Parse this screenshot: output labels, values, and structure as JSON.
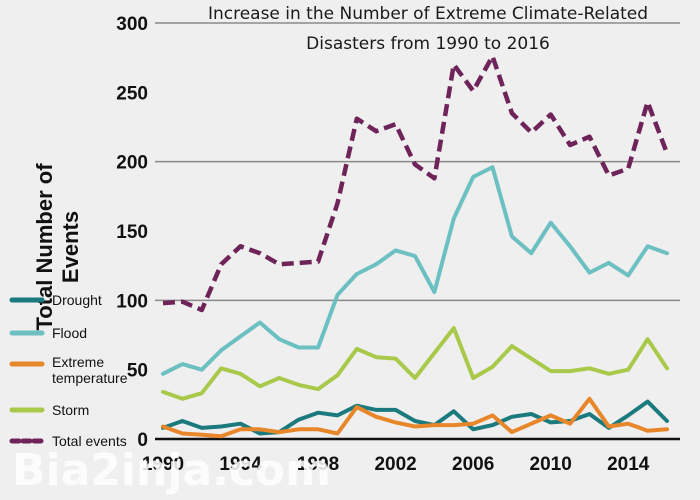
{
  "chart_data": {
    "type": "line",
    "title": "Increase in the Number of Extreme Climate-Related Disasters from 1990 to 2016",
    "title_lines": [
      "Increase in the Number of Extreme Climate-Related",
      "Disasters from 1990 to 2016"
    ],
    "xlabel": "",
    "ylabel_lines": [
      "Total Number of",
      "Events"
    ],
    "ylabel": "Total Number of Events",
    "x": [
      1990,
      1991,
      1992,
      1993,
      1994,
      1995,
      1996,
      1997,
      1998,
      1999,
      2000,
      2001,
      2002,
      2003,
      2004,
      2005,
      2006,
      2007,
      2008,
      2009,
      2010,
      2011,
      2012,
      2013,
      2014,
      2015,
      2016
    ],
    "xlim": [
      1990,
      2016
    ],
    "ylim": [
      0,
      300
    ],
    "x_ticks": [
      1990,
      1994,
      1998,
      2002,
      2006,
      2010,
      2014
    ],
    "x_tick_labels": [
      "1990",
      "1994",
      "1998",
      "2002",
      "2006",
      "2010",
      "2014"
    ],
    "y_ticks": [
      0,
      50,
      100,
      150,
      200,
      250,
      300
    ],
    "y_tick_labels": [
      "0",
      "50",
      "100",
      "150",
      "200",
      "250",
      "300"
    ],
    "gridlines_at": [
      100,
      200,
      300
    ],
    "grid": true,
    "legend_position": "left",
    "series": [
      {
        "name": "Drought",
        "color": "#1b7a7e",
        "dashed": false,
        "values": [
          8,
          13,
          8,
          9,
          11,
          4,
          5,
          14,
          19,
          17,
          24,
          21,
          21,
          13,
          10,
          20,
          7,
          10,
          16,
          18,
          12,
          13,
          18,
          8,
          17,
          27,
          13
        ]
      },
      {
        "name": "Flood",
        "color": "#6cc0c1",
        "dashed": false,
        "values": [
          47,
          54,
          50,
          64,
          74,
          84,
          72,
          66,
          66,
          104,
          119,
          126,
          136,
          132,
          106,
          159,
          189,
          196,
          146,
          134,
          156,
          139,
          120,
          127,
          118,
          139,
          134
        ]
      },
      {
        "name": "Extreme temperature",
        "color": "#e8872a",
        "dashed": false,
        "values": [
          9,
          4,
          3,
          2,
          7,
          7,
          5,
          7,
          7,
          4,
          23,
          16,
          12,
          9,
          10,
          10,
          11,
          17,
          5,
          11,
          17,
          11,
          29,
          9,
          11,
          6,
          7
        ]
      },
      {
        "name": "Storm",
        "color": "#a8c94a",
        "dashed": false,
        "values": [
          34,
          29,
          33,
          51,
          47,
          38,
          44,
          39,
          36,
          46,
          65,
          59,
          58,
          44,
          62,
          80,
          44,
          52,
          67,
          58,
          49,
          49,
          51,
          47,
          50,
          72,
          51
        ]
      },
      {
        "name": "Total events",
        "color": "#6e2459",
        "dashed": true,
        "values": [
          98,
          99,
          93,
          126,
          139,
          134,
          126,
          127,
          128,
          170,
          231,
          222,
          227,
          198,
          188,
          270,
          251,
          276,
          235,
          221,
          234,
          212,
          218,
          190,
          195,
          243,
          206
        ]
      }
    ],
    "legend_labels": {
      "drought": "Drought",
      "flood": "Flood",
      "extreme_temp_line1": "Extreme",
      "extreme_temp_line2": "temperature",
      "storm": "Storm",
      "total": "Total events"
    }
  },
  "watermark": "Bia2inja.com"
}
